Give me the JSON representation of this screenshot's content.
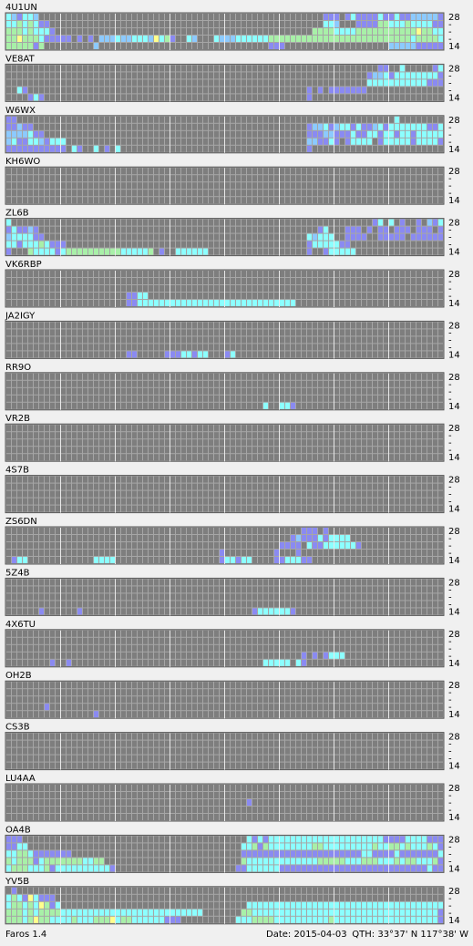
{
  "band_labels": [
    "28",
    "-",
    "-",
    "-",
    "14"
  ],
  "level_colors": [
    "#7e7e7e",
    "#8a8af2",
    "#8ccaff",
    "#8cffff",
    "#a8f0a8",
    "#ffff8c"
  ],
  "beacons": [
    {
      "name": "4U1UN",
      "rows": [
        "32133200000000000000000000000000000000000000000000000000001110131111311311222221111111110",
        "33434311000000000000000000000000000000000000000000000000003320001111443334333311332211100",
        "44434333100000000000000000000000000000000000000000000000444433334444444444454433434433310",
        "44544431111101010222322333253410032000322233333344444444444444444444444444344443434100",
        "44444140000000002000000000000000000000000000000011100000000000000000002222211111111"
      ]
    },
    {
      "name": "VE8AT",
      "rows": [
        "00000000000000000000000000000000000000000000000000000000000000000000110030000013000000",
        "00000000000000000000000000000000000000000000000000000000000000000012231333333331000000",
        "00000000000000000000000000000000000000000000000000000000000000000033333333333111000000",
        "00310000000000000000000000000000000000000000000000000001010111111100000000000000000000",
        "00001310000000000000000000000000000000000000000000000001000000000000000000000000000000"
      ]
    },
    {
      "name": "W6WX",
      "rows": [
        "11000000000000000000000000000000000000000000000000000000000000000000000300000000000000",
        "11211000000000000000000000000000000000000000000000000001223123313112313333333113311100",
        "22223110000000000000000000000000000000000000000000000001112211131133133133133333111100",
        "23113321333000000000000000000000000000000000000000000002211310133330133333133331113100",
        "11111111111031003010300000000000000000000000000000000001000000000000000000000000000000"
      ]
    },
    {
      "name": "KH6WO",
      "rows": [
        "00000000000000000000000000000000000000000000000000000000000000000000000000000000",
        "00000000000000000000000000000000000000000000000000000000000000000000000000000000",
        "00000000000000000000000000000000000000000000000000000000000000000000000000000000",
        "00000000000000000000000000000000000000000000000000000000000000000000000000000000",
        "00000000000000000000000000000000000000000000000000000000000000000000000000000000"
      ]
    },
    {
      "name": "ZL6B",
      "rows": [
        "30000000000000000000000000000000000000000000000000000000000000000001303010010213010100",
        "13112100000000000000000000000000000000000000000000000000013000111010110111011101100",
        "23333110000000000000000000000000000000000000000000000003233300111100111110111111110",
        "33133343111000000000000000000000000000000000000000000001333331100000000000000000000",
        "10004333313444444444433333401003333330000000000000000001001333330000000000000000000"
      ]
    },
    {
      "name": "VK6RBP",
      "rows": [
        "00000000000000000000000000000000000000000000000000000000000000000000000000000000",
        "00000000000000000000000000000000000000000000000000000000000000000000000000000000",
        "00000000000000000000000000000000000000000000000000000000000000000000000000000000",
        "00000000000000000000001133000000000000000000000000000000000000000000000000000000",
        "00000000000000000000001133333333333333333333333333333000000000000000000000000000"
      ]
    },
    {
      "name": "JA2IGY",
      "rows": [
        "00000000000000000000000000000000000000000000000000000000000000000000000000000000",
        "00000000000000000000000000000000000000000000000000000000000000000000000000000000",
        "00000000000000000000000000000000000000000000000000000000000000000000000000000000",
        "00000000000000000000000000000000000000000000000000000000000000000000000000000000",
        "00000000000000000000001100000111331330001300000000000000000000000000000000000000"
      ]
    },
    {
      "name": "RR9O",
      "rows": [
        "00000000000000000000000000000000000000000000000000000000000000000000000000000000",
        "00000000000000000000000000000000000000000000000000000000000000000000000000000000",
        "00000000000000000000000000000000000000000000000000000000000000000000000000000000",
        "00000000000000000000000000000000000000000000000000000000000000000000000000000000",
        "00000000000000000000000000000000000000000000000300331000000000000000000000000000"
      ]
    },
    {
      "name": "VR2B",
      "rows": [
        "00000000000000000000000000000000000000000000000000000000000000000000000000000000",
        "00000000000000000000000000000000000000000000000000000000000000000000000000000000",
        "00000000000000000000000000000000000000000000000000000000000000000000000000000000",
        "00000000000000000000000000000000000000000000000000000000000000000000000000000000",
        "00000000000000000000000000000000000000000000000000000000000000000000000000000000"
      ]
    },
    {
      "name": "4S7B",
      "rows": [
        "00000000000000000000000000000000000000000000000000000000000000000000000000000000",
        "00000000000000000000000000000000000000000000000000000000000000000000000000000000",
        "00000000000000000000000000000000000000000000000000000000000000000000000000000000",
        "00000000000000000000000000000000000000000000000000000000000000000000000000000000",
        "00000000000000000000000000000000000000000000000000000000000000000000000000000000"
      ]
    },
    {
      "name": "ZS6DN",
      "rows": [
        "00000000000000000000000000000000000000000000000000000011101000000000000000000000",
        "00000000000000000000000000000000000000000000000000001211131333300000000000000000",
        "00000000000000000000000000000000000000000000000000111103113333331000000000000000",
        "00000000000000000000000000000000000000010000000001000100000000000000000000000000",
        "01330000000000003333000000000000000000013313300001133311000000000000000000000000"
      ]
    },
    {
      "name": "5Z4B",
      "rows": [
        "00000000000000000000000000000000000000000000000000000000000000000000000000000000",
        "00000000000000000000000000000000000000000000000000000000000000000000000000000000",
        "00000000000000000000000000000000000000000000000000000000000000000000000000000000",
        "00000000000000000000000000000000000000000000000000000000000000000000000000000000",
        "00000010000001000000000000000000000000000000013333331000000000000000000000000000"
      ]
    },
    {
      "name": "4X6TU",
      "rows": [
        "00000000000000000000000000000000000000000000000000000000000000000000000000000000",
        "00000000000000000000000000000000000000000000000000000000000000000000000000000000",
        "00000000000000000000000000000000000000000000000000000000000000000000000000000000",
        "00000000000000000000000000000000000000000000000000000010101333000000000000000000",
        "00000000100100000000000000000000000000000000000333330310000000000000000000000000"
      ]
    },
    {
      "name": "OH2B",
      "rows": [
        "00000000000000000000000000000000000000000000000000000000000000000000000000000000",
        "00000000000000000000000000000000000000000000000000000000000000000000000000000000",
        "00000000000000000000000000000000000000000000000000000000000000000000000000000000",
        "00000001000000000000000000000000000000000000000000000000000000000000000000000000",
        "00000000000000001000000000000000000000000000000000000000000000000000000000000000"
      ]
    },
    {
      "name": "CS3B",
      "rows": [
        "00000000000000000000000000000000000000000000000000000000000000000000000000000000",
        "00000000000000000000000000000000000000000000000000000000000000000000000000000000",
        "00000000000000000000000000000000000000000000000000000000000000000000000000000000",
        "00000000000000000000000000000000000000000000000000000000000000000000000000000000",
        "00000000000000000000000000000000000000000000000000000000000000000000000000000000"
      ]
    },
    {
      "name": "LU4AA",
      "rows": [
        "00000000000000000000000000000000000000000000000000000000000000000000000000000000",
        "00000000000000000000000000000000000000000000000000000000000000000000000000000000",
        "00000000000000000000000000000000000000000000100000000000000000000000000000000000",
        "00000000000000000000000000000000000000000000000000000000000000000000000000000000",
        "00000000000000000000000000000000000000000000000000000000000000000000000000000000"
      ]
    },
    {
      "name": "OA4B",
      "rows": [
        "11100000000000000000000000000000000000000000313133333333333333333333311113333111",
        "11330000000000000000000000000000000000000003341433333333443333333334334434333431",
        "33443111111100000000000000000000000000000001111111111111111111111331111311111113",
        "43444134444444334400000000000000000000000004333333333333344444333444333434433341",
        "34443334133333333331000000000000000000000011333333111111111111111111111111111311"
      ]
    },
    {
      "name": "YV5B",
      "rows": [
        "01000000000000000000000000000000000000000000000000000000000000000000000000000000",
        "34315311100000000000000000000000000000000000000000000000000000000000000000000000",
        "34434354130000000000000000000000000000000000333333333333333333333333333333333333",
        "44434344443333333333333333333333333300000004433333333333333333333333333333333331",
        "44434544333343334445344333333111000000000033344443333333333433333333333333333331"
      ]
    }
  ],
  "footer": {
    "app": "Faros 1.4",
    "date": "Date: 2015-04-03",
    "qth": "QTH: 33°37' N  117°38' W"
  }
}
